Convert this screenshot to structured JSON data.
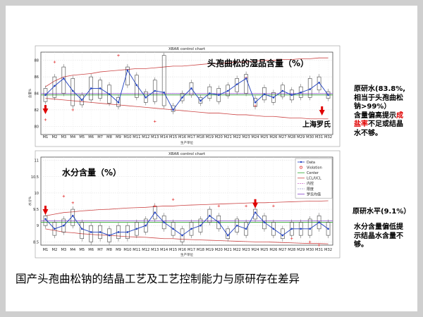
{
  "slide": {
    "caption": "国产头孢曲松钠的结晶工艺及工艺控制能力与原研存在差异"
  },
  "chart_data": [
    {
      "type": "box",
      "title": "头孢曲松的湿品含量（%）",
      "plot_title": "XBAR control chart",
      "xlabel": "生产单位",
      "ylabel": "含量%",
      "ylim": [
        79,
        89
      ],
      "yticks": [
        80,
        82,
        84,
        86,
        88
      ],
      "grid": true,
      "categories": [
        "M1",
        "M2",
        "M3",
        "M4",
        "M5",
        "M6",
        "M7",
        "M8",
        "M9",
        "M10",
        "M11",
        "M12",
        "M13",
        "M14",
        "M15",
        "M16",
        "M17",
        "M18",
        "M19",
        "M20",
        "M21",
        "M22",
        "M23",
        "M24",
        "M25",
        "M26",
        "M27",
        "M28",
        "M29",
        "M30",
        "M31",
        "M32"
      ],
      "center": 83.8,
      "means": [
        83.8,
        84.9,
        85.8,
        84.3,
        83.2,
        84.6,
        84.6,
        83.9,
        82.9,
        86.8,
        85.0,
        83.5,
        84.3,
        84.1,
        82.0,
        83.5,
        84.6,
        83.1,
        84.0,
        83.8,
        84.3,
        85.1,
        85.8,
        82.9,
        83.9,
        83.5,
        84.3,
        83.8,
        84.1,
        84.5,
        85.3,
        83.8
      ],
      "box_q1": [
        83.0,
        83.5,
        84.0,
        82.5,
        82.6,
        83.2,
        83.4,
        82.8,
        82.4,
        85.0,
        83.5,
        82.9,
        83.0,
        82.5,
        81.8,
        83.1,
        83.8,
        82.8,
        83.4,
        83.0,
        83.7,
        84.2,
        84.0,
        82.4,
        83.2,
        82.9,
        83.6,
        83.2,
        83.5,
        83.5,
        84.4,
        83.4
      ],
      "box_q3": [
        84.6,
        86.0,
        87.2,
        85.8,
        83.8,
        86.0,
        85.6,
        85.0,
        83.5,
        87.2,
        86.2,
        84.2,
        85.6,
        88.6,
        82.5,
        84.0,
        85.3,
        83.5,
        84.8,
        84.6,
        85.0,
        85.8,
        86.3,
        83.4,
        84.7,
        84.1,
        85.0,
        84.4,
        84.8,
        85.8,
        86.0,
        84.2
      ],
      "upper_limit": [
        84.8,
        85.5,
        86.0,
        86.2,
        86.3,
        86.4,
        86.6,
        86.7,
        86.8,
        86.9,
        87.0,
        87.0,
        87.1,
        87.2,
        87.3,
        87.3,
        87.4,
        87.5,
        87.6,
        87.6,
        87.7,
        87.8,
        87.8,
        87.9,
        88.0,
        88.0,
        88.1,
        88.1,
        88.2,
        88.2,
        88.3,
        88.3
      ],
      "lower_limit": [
        83.4,
        83.3,
        83.2,
        83.1,
        83.0,
        82.9,
        82.8,
        82.7,
        82.6,
        82.5,
        82.4,
        82.3,
        82.2,
        82.1,
        82.0,
        81.9,
        81.8,
        81.7,
        81.6,
        81.6,
        81.5,
        81.4,
        81.4,
        81.3,
        81.2,
        81.2,
        81.1,
        81.0,
        81.0,
        80.9,
        80.9,
        80.9
      ],
      "original_level": 83.8,
      "outliers": [
        [
          0,
          82.4
        ],
        [
          0,
          80.8
        ],
        [
          1,
          87.8
        ],
        [
          3,
          82.0
        ],
        [
          8,
          88.6
        ],
        [
          12,
          80.6
        ],
        [
          22,
          85.9
        ],
        [
          23,
          82.5
        ]
      ],
      "annotation": {
        "lines": [
          {
            "text": "原研水(83.8%,",
            "color": "#000000"
          },
          {
            "text": "相当于头孢曲松",
            "color": "#000000"
          },
          {
            "text": "钠>99%）",
            "color": "#000000"
          }
        ],
        "line4_pre": "含量偏高提示",
        "line4_red": "成",
        "line5_red": "盐率",
        "line5_post": "不足或结晶",
        "line6": "水不够。",
        "tag": "上海罗氏"
      },
      "arrow_categories": [
        0,
        28
      ]
    },
    {
      "type": "box",
      "title": "水分含量（%）",
      "plot_title": "XBAR control chart",
      "xlabel": "生产单位",
      "ylabel": "水分%",
      "ylim": [
        8.4,
        11.1
      ],
      "yticks": [
        8.5,
        9.0,
        9.5,
        10.0,
        10.5,
        11.0
      ],
      "ytick_labels": [
        "8.5",
        "9",
        "9.5",
        "10",
        "10.5",
        "11"
      ],
      "grid": true,
      "categories": [
        "M1",
        "M2",
        "M3",
        "M4",
        "M5",
        "M6",
        "M7",
        "M8",
        "M9",
        "M10",
        "M11",
        "M12",
        "M13",
        "M14",
        "M15",
        "M16",
        "M17",
        "M18",
        "M19",
        "M20",
        "M21",
        "M22",
        "M23",
        "M24",
        "M25",
        "M26",
        "M27",
        "M28",
        "M29",
        "M30",
        "M31",
        "M32"
      ],
      "center": 9.1,
      "means": [
        9.2,
        8.9,
        9.0,
        9.3,
        8.9,
        8.8,
        8.8,
        8.7,
        8.8,
        8.8,
        8.9,
        9.0,
        9.4,
        9.1,
        8.9,
        8.7,
        8.9,
        9.0,
        9.3,
        9.1,
        8.7,
        9.0,
        8.9,
        9.4,
        9.1,
        8.9,
        8.7,
        8.9,
        8.9,
        8.9,
        9.1,
        8.9
      ],
      "box_q1": [
        9.0,
        8.7,
        8.8,
        9.0,
        8.6,
        8.5,
        8.6,
        8.5,
        8.6,
        8.6,
        8.7,
        8.8,
        9.2,
        8.9,
        8.7,
        8.5,
        8.7,
        8.8,
        9.1,
        8.9,
        8.6,
        8.8,
        8.7,
        9.2,
        8.9,
        8.7,
        8.6,
        8.7,
        8.7,
        8.7,
        8.9,
        8.7
      ],
      "box_q3": [
        9.3,
        9.1,
        9.2,
        9.5,
        9.1,
        9.0,
        9.0,
        8.9,
        9.0,
        9.0,
        9.1,
        9.2,
        9.6,
        9.3,
        9.1,
        8.9,
        9.1,
        9.2,
        9.5,
        9.3,
        8.9,
        9.2,
        9.1,
        9.5,
        9.3,
        9.1,
        8.9,
        9.1,
        9.1,
        9.2,
        9.3,
        9.1
      ],
      "upper_limit": [
        9.3,
        9.35,
        9.4,
        9.42,
        9.45,
        9.47,
        9.49,
        9.5,
        9.52,
        9.54,
        9.55,
        9.56,
        9.58,
        9.6,
        9.6,
        9.62,
        9.63,
        9.64,
        9.65,
        9.66,
        9.67,
        9.68,
        9.69,
        9.7,
        9.7,
        9.71,
        9.72,
        9.73,
        9.74,
        9.75,
        9.75,
        9.76
      ],
      "lower_limit": [
        8.9,
        8.85,
        8.8,
        8.78,
        8.75,
        8.73,
        8.71,
        8.7,
        8.68,
        8.66,
        8.65,
        8.64,
        8.62,
        8.6,
        8.6,
        8.58,
        8.57,
        8.56,
        8.55,
        8.54,
        8.53,
        8.52,
        8.51,
        8.5,
        8.5,
        8.49,
        8.48,
        8.47,
        8.46,
        8.45,
        8.45,
        8.44
      ],
      "original_level": 9.1,
      "outliers": [
        [
          2,
          9.9
        ],
        [
          3,
          9.7
        ],
        [
          12,
          9.6
        ],
        [
          14,
          9.8
        ],
        [
          19,
          9.6
        ],
        [
          22,
          9.6
        ],
        [
          25,
          9.6
        ],
        [
          27,
          8.6
        ],
        [
          29,
          8.5
        ],
        [
          30,
          8.4
        ]
      ],
      "legend": {
        "placement": "top-right",
        "items": [
          {
            "label": "Data",
            "color": "#1f3fbf",
            "style": "line-dot"
          },
          {
            "label": "Violation",
            "color": "#e02020",
            "style": "circle"
          },
          {
            "label": "Center",
            "color": "#2aa52a",
            "style": "line"
          },
          {
            "label": "LCL/UCL",
            "color": "#cc4444",
            "style": "line"
          },
          {
            "label": "内控",
            "color": "#cc66cc",
            "style": "dashed"
          },
          {
            "label": "限度",
            "color": "#9999cc",
            "style": "dashed"
          },
          {
            "label": "罗氏均值",
            "color": "#8844cc",
            "style": "line"
          }
        ]
      },
      "annotation": {
        "head": "原研水平(9.1%）",
        "lines": [
          "水分含量偏低提",
          "示结晶水含量不",
          "够。"
        ]
      },
      "arrow_categories": [
        0,
        23
      ]
    }
  ]
}
